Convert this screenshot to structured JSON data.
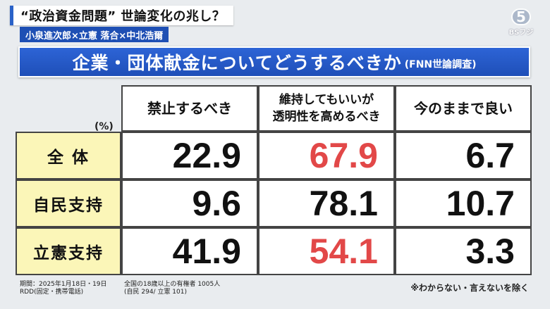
{
  "header": {
    "title": "“政治資金問題” 世論変化の兆し？",
    "subtitle": "小泉進次郎×立憲 落合×中北浩爾",
    "logo_mark": "5",
    "logo_text": "BSフジ"
  },
  "banner": {
    "title": "企業・団体献金についてどうするべきか",
    "source": "(FNN世論調査)"
  },
  "table": {
    "unit": "(%)",
    "columns": [
      {
        "lines": [
          "禁止するべき"
        ]
      },
      {
        "lines": [
          "維持してもいいが",
          "透明性を高めるべき"
        ]
      },
      {
        "lines": [
          "今のままで良い"
        ]
      }
    ],
    "rows": [
      {
        "label": "全 体",
        "values": [
          "22.9",
          "67.9",
          "6.7"
        ],
        "highlight": [
          false,
          true,
          false
        ]
      },
      {
        "label": "自民支持",
        "values": [
          "9.6",
          "78.1",
          "10.7"
        ],
        "highlight": [
          false,
          false,
          false
        ]
      },
      {
        "label": "立憲支持",
        "values": [
          "41.9",
          "54.1",
          "3.3"
        ],
        "highlight": [
          false,
          true,
          false
        ]
      }
    ]
  },
  "footer": {
    "period": "期間：2025年1月18日・19日",
    "method": "RDD(固定・携帯電話)",
    "sample": "全国の18歳以上の有権者 1005人",
    "sample_detail": "(自民 294/ 立憲 101)",
    "note": "※わからない・言えないを除く"
  },
  "colors": {
    "banner": "#2a5ccc",
    "row_header": "#fbf6b8",
    "highlight_value": "#e24848"
  }
}
